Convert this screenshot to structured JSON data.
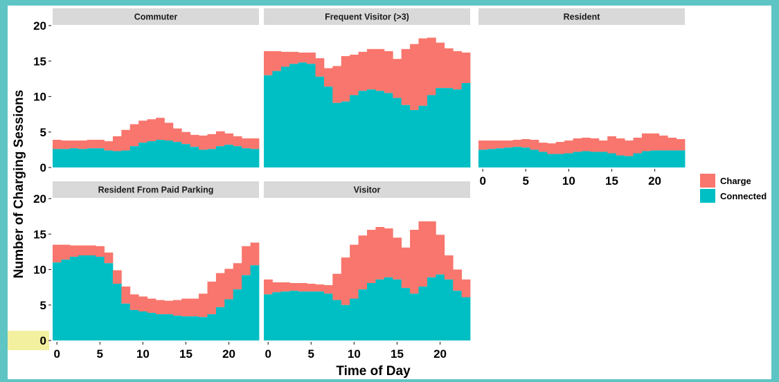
{
  "colors": {
    "charge": "#f8766d",
    "connected": "#00bfc4",
    "strip": "#d9d9d9",
    "tick": "#333333"
  },
  "chart_data": {
    "type": "bar",
    "style": "stacked histogram, faceted",
    "xlabel": "Time of Day",
    "ylabel": "Number of Charging Sessions",
    "xlim": [
      -0.5,
      23.5
    ],
    "ylim": [
      0,
      20
    ],
    "x_ticks": [
      0,
      5,
      10,
      15,
      20
    ],
    "y_ticks": [
      0,
      5,
      10,
      15,
      20
    ],
    "x_tick_labels": [
      "0",
      "5",
      "10",
      "15",
      "20"
    ],
    "y_tick_labels": [
      "0",
      "5",
      "10",
      "15",
      "20"
    ],
    "x": [
      0,
      1,
      2,
      3,
      4,
      5,
      6,
      7,
      8,
      9,
      10,
      11,
      12,
      13,
      14,
      15,
      16,
      17,
      18,
      19,
      20,
      21,
      22,
      23
    ],
    "grid": false,
    "legend": {
      "position": "right",
      "items": [
        {
          "name": "Charge",
          "color": "#f8766d"
        },
        {
          "name": "Connected",
          "color": "#00bfc4"
        }
      ]
    },
    "facets": [
      {
        "name": "Commuter",
        "connected": [
          2.6,
          2.6,
          2.7,
          2.6,
          2.7,
          2.7,
          2.4,
          2.3,
          2.4,
          3.0,
          3.5,
          3.7,
          3.9,
          3.8,
          3.6,
          3.3,
          2.9,
          2.5,
          2.6,
          3.0,
          3.2,
          3.0,
          2.7,
          2.6
        ],
        "total": [
          3.9,
          3.8,
          3.8,
          3.8,
          3.9,
          3.9,
          3.7,
          4.4,
          5.3,
          6.1,
          6.6,
          6.8,
          7.0,
          6.3,
          5.5,
          5.0,
          4.6,
          4.5,
          4.7,
          5.1,
          4.8,
          4.4,
          4.1,
          4.1
        ]
      },
      {
        "name": "Frequent Visitor (>3)",
        "connected": [
          13.0,
          13.6,
          14.2,
          14.6,
          14.8,
          14.6,
          12.8,
          11.4,
          9.1,
          9.3,
          10.2,
          10.8,
          11.0,
          10.8,
          10.5,
          9.8,
          8.8,
          8.1,
          8.7,
          10.2,
          11.2,
          11.2,
          11.0,
          11.9
        ],
        "total": [
          16.4,
          16.4,
          16.3,
          16.3,
          16.2,
          16.2,
          15.4,
          14.0,
          14.3,
          15.7,
          15.9,
          16.3,
          16.7,
          16.7,
          16.4,
          15.3,
          16.7,
          17.4,
          18.2,
          18.3,
          17.6,
          16.8,
          16.4,
          16.2
        ]
      },
      {
        "name": "Resident",
        "connected": [
          2.5,
          2.6,
          2.7,
          2.8,
          2.9,
          2.8,
          2.5,
          2.2,
          1.9,
          1.9,
          2.0,
          2.2,
          2.3,
          2.2,
          2.2,
          2.0,
          1.7,
          1.6,
          2.0,
          2.3,
          2.4,
          2.4,
          2.4,
          2.4
        ],
        "total": [
          3.8,
          3.8,
          3.8,
          3.8,
          3.9,
          4.0,
          3.9,
          3.5,
          3.4,
          3.6,
          3.8,
          4.1,
          4.2,
          4.1,
          3.8,
          4.4,
          4.1,
          3.8,
          4.2,
          4.8,
          4.8,
          4.5,
          4.2,
          4.0
        ]
      },
      {
        "name": "Resident From Paid Parking",
        "connected": [
          11.0,
          11.4,
          11.8,
          12.0,
          12.0,
          11.8,
          10.9,
          8.0,
          5.2,
          4.3,
          4.1,
          3.9,
          3.7,
          3.7,
          3.5,
          3.4,
          3.4,
          3.3,
          3.7,
          4.7,
          5.8,
          7.2,
          9.2,
          10.6
        ],
        "total": [
          13.5,
          13.5,
          13.4,
          13.4,
          13.4,
          13.3,
          12.4,
          9.9,
          7.6,
          6.5,
          6.2,
          5.9,
          5.7,
          5.6,
          5.7,
          5.9,
          5.9,
          6.6,
          8.3,
          9.5,
          10.1,
          10.9,
          13.3,
          13.8
        ]
      },
      {
        "name": "Visitor",
        "connected": [
          6.5,
          6.8,
          6.9,
          7.0,
          6.9,
          6.9,
          6.9,
          6.6,
          5.7,
          5.0,
          5.9,
          7.2,
          8.1,
          8.6,
          8.9,
          8.6,
          7.4,
          6.6,
          7.6,
          8.9,
          9.3,
          8.6,
          7.0,
          6.1
        ],
        "total": [
          8.6,
          8.2,
          8.2,
          8.1,
          8.1,
          8.0,
          7.9,
          7.8,
          9.4,
          11.7,
          13.5,
          14.8,
          15.6,
          16.0,
          15.8,
          14.5,
          13.1,
          15.6,
          16.8,
          16.8,
          14.9,
          12.0,
          10.0,
          8.6
        ]
      }
    ]
  }
}
